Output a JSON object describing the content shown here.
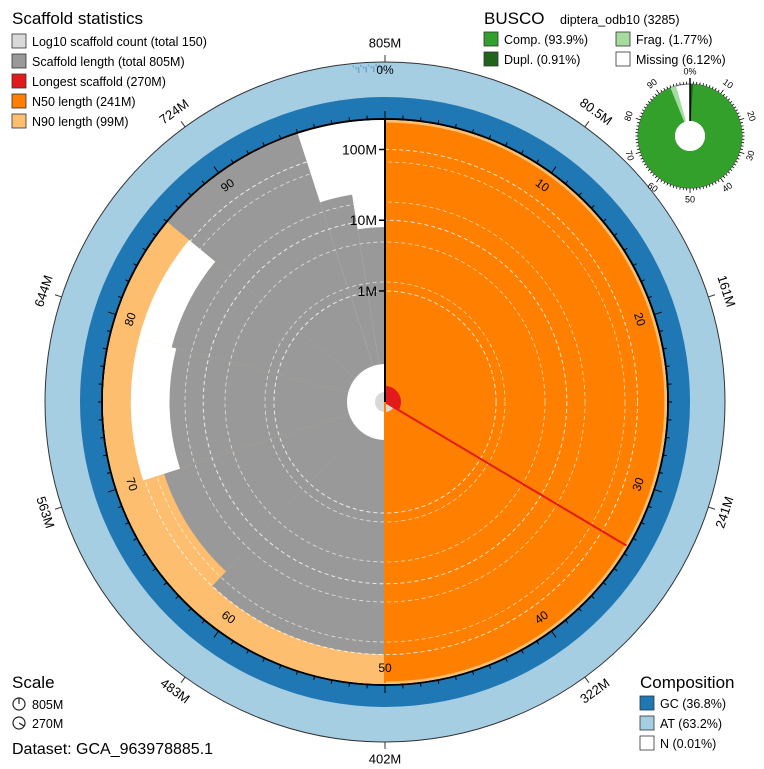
{
  "chart_data": {
    "type": "snail",
    "dataset": "Dataset: GCA_963978885.1",
    "legend": {
      "title": "Scaffold statistics",
      "items": [
        {
          "label": "Log10 scaffold count (total 150)",
          "color": "#d9d9d9"
        },
        {
          "label": "Scaffold length (total 805M)",
          "color": "#999999"
        },
        {
          "label": "Longest scaffold (270M)",
          "color": "#e31a1c"
        },
        {
          "label": "N50 length (241M)",
          "color": "#ff7f00"
        },
        {
          "label": "N90 length (99M)",
          "color": "#fdbf6f"
        }
      ]
    },
    "scaffold_stats": {
      "total_length": 805,
      "scaffold_count": 150,
      "longest": 270,
      "n50": 241,
      "n90": 99,
      "unit": "M"
    },
    "outer_ticks": [
      "805M",
      "80.5M",
      "161M",
      "241M",
      "322M",
      "402M",
      "483M",
      "563M",
      "644M",
      "724M"
    ],
    "inner_ticks": [
      "10",
      "20",
      "30",
      "40",
      "50",
      "60",
      "70",
      "80",
      "90"
    ],
    "radial_labels": [
      "1M",
      "10M",
      "100M"
    ],
    "busco": {
      "title": "BUSCO",
      "lineage": "diptera_odb10 (3285)",
      "items": [
        {
          "label": "Comp. (93.9%)",
          "value": 93.9,
          "color": "#33a02c"
        },
        {
          "label": "Frag. (1.77%)",
          "value": 1.77,
          "color": "#a6dba0"
        },
        {
          "label": "Dupl. (0.91%)",
          "value": 0.91,
          "color": "#20641c"
        },
        {
          "label": "Missing (6.12%)",
          "value": 6.12,
          "color": "#ffffff"
        }
      ],
      "ticks": [
        "0%",
        "10",
        "20",
        "30",
        "40",
        "50",
        "60",
        "70",
        "80",
        "90"
      ]
    },
    "composition": {
      "title": "Composition",
      "items": [
        {
          "label": "GC (36.8%)",
          "value": 36.8,
          "color": "#1f78b4"
        },
        {
          "label": "AT (63.2%)",
          "value": 63.2,
          "color": "#a6cee3"
        },
        {
          "label": "N (0.01%)",
          "value": 0.01,
          "color": "#ffffff"
        }
      ]
    },
    "scale": {
      "title": "Scale",
      "items": [
        "805M",
        "270M"
      ]
    },
    "center_label": "0%"
  }
}
